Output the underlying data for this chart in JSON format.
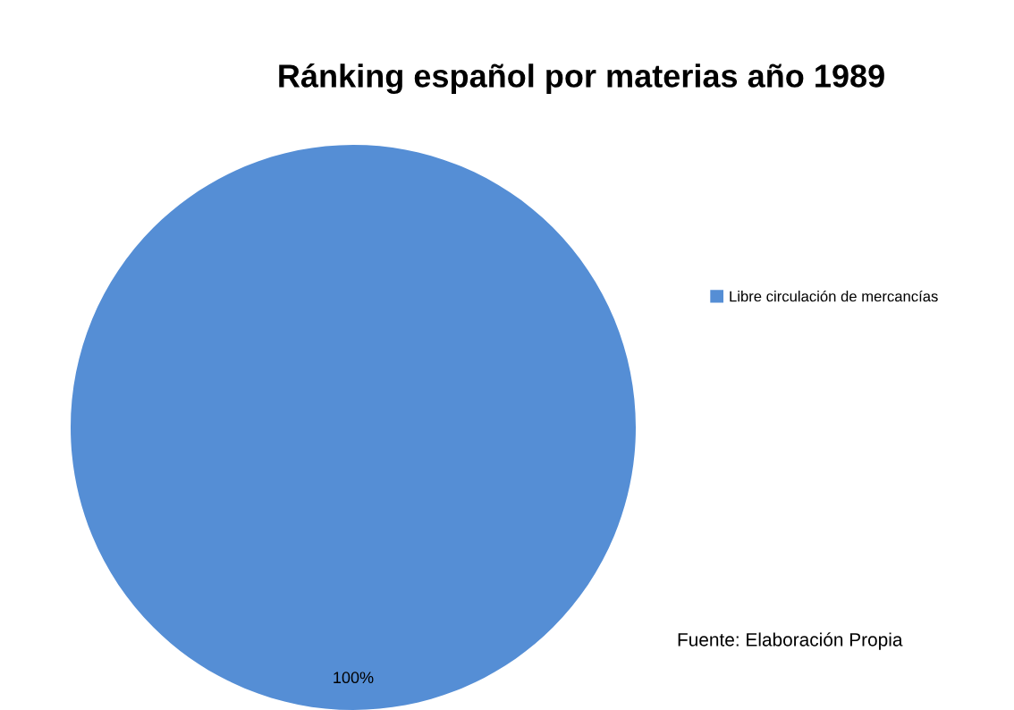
{
  "chart_data": {
    "type": "pie",
    "title": "Ránking español por materias año 1989",
    "categories": [
      "Libre circulación de mercancías"
    ],
    "values": [
      100
    ],
    "colors": [
      "#558ed5"
    ],
    "value_labels": [
      "100%"
    ],
    "legend": "right",
    "annotations": [
      "Fuente: Elaboración Propia"
    ]
  }
}
